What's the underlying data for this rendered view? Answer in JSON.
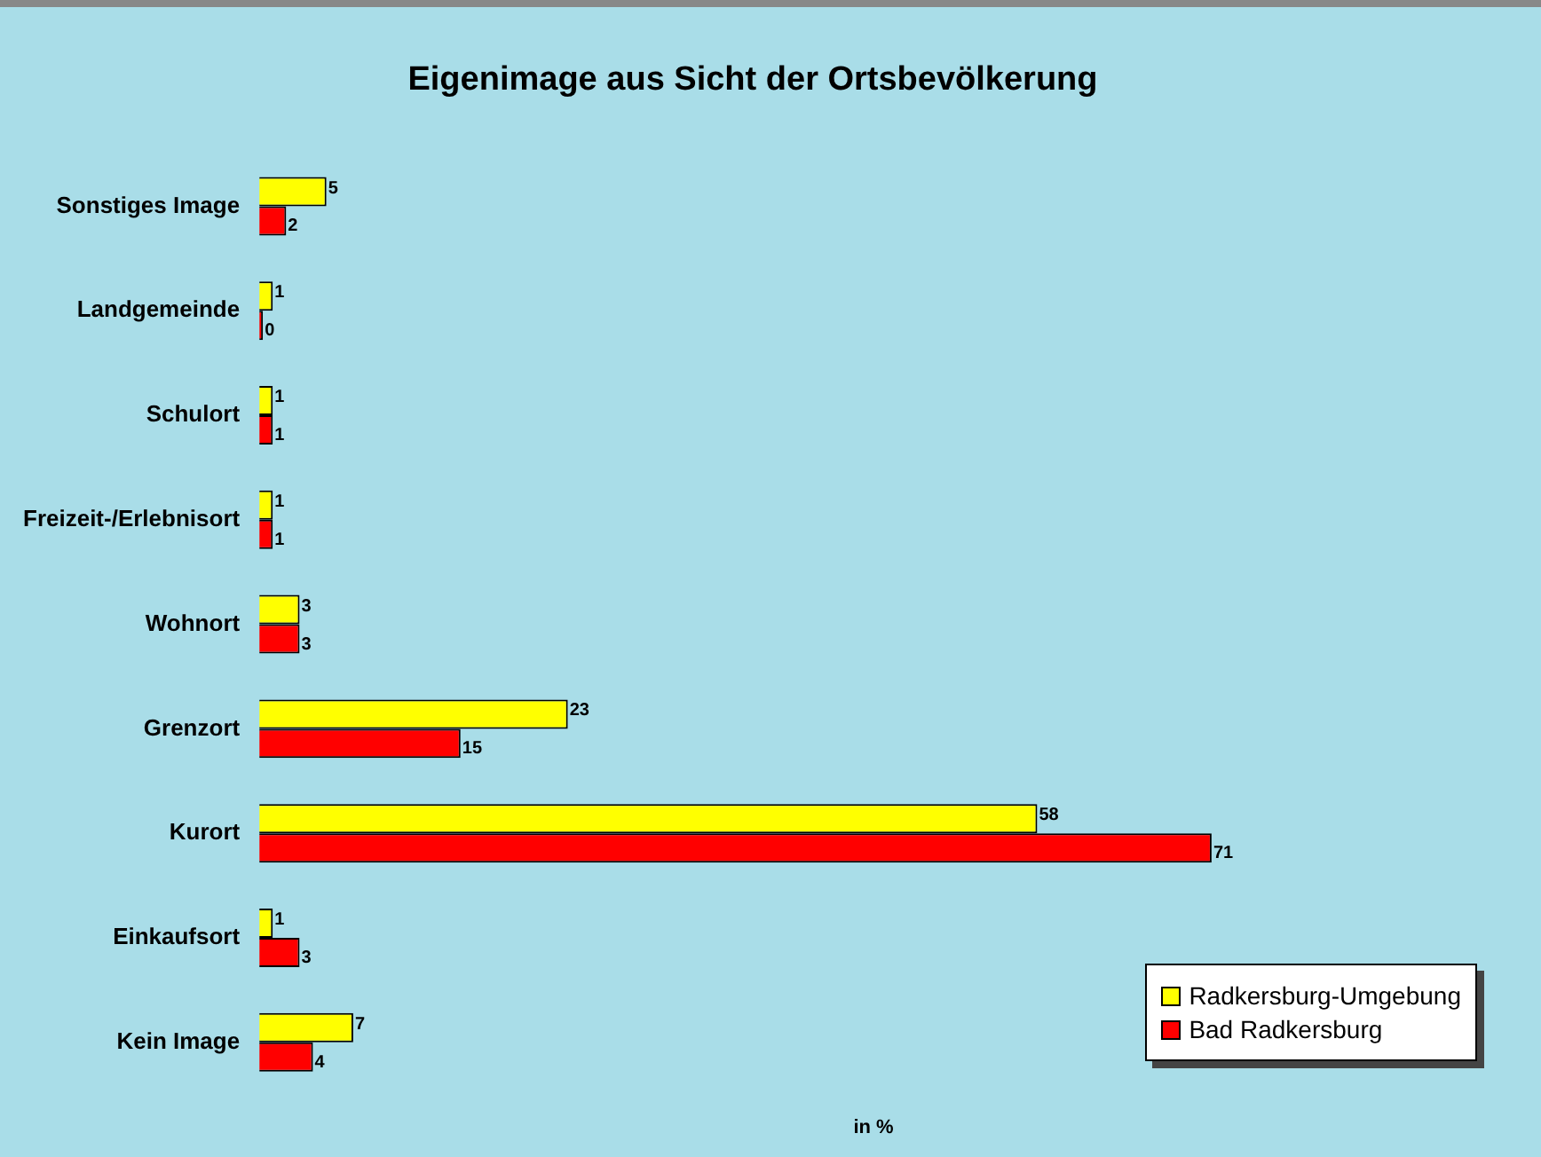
{
  "chart_data": {
    "type": "bar",
    "orientation": "horizontal",
    "title": "Eigenimage aus Sicht der Ortsbevölkerung",
    "xlabel": "in %",
    "categories": [
      "Sonstiges Image",
      "Landgemeinde",
      "Schulort",
      "Freizeit-/Erlebnisort",
      "Wohnort",
      "Grenzort",
      "Kurort",
      "Einkaufsort",
      "Kein Image"
    ],
    "series": [
      {
        "name": "Radkersburg-Umgebung",
        "color": "#ffff00",
        "values": [
          5,
          1,
          1,
          1,
          3,
          23,
          58,
          1,
          7
        ]
      },
      {
        "name": "Bad Radkersburg",
        "color": "#ff0000",
        "values": [
          2,
          0,
          1,
          1,
          3,
          15,
          71,
          3,
          4
        ]
      }
    ],
    "data_labels": true,
    "legend": "bottom right",
    "grid": false,
    "tick_labels": "y"
  }
}
